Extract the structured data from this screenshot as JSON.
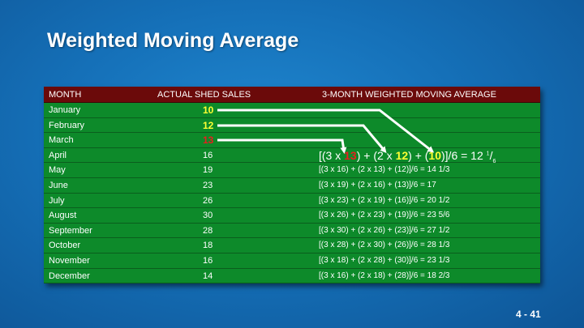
{
  "title": "Weighted Moving Average",
  "headers": {
    "month": "MONTH",
    "sales": "ACTUAL SHED SALES",
    "wma": "3-MONTH WEIGHTED MOVING AVERAGE"
  },
  "rows": [
    {
      "month": "January",
      "sales": "10",
      "wma": ""
    },
    {
      "month": "February",
      "sales": "12",
      "wma": ""
    },
    {
      "month": "March",
      "sales": "13",
      "wma": ""
    },
    {
      "month": "April",
      "sales": "16",
      "wma": ""
    },
    {
      "month": "May",
      "sales": "19",
      "wma": "[(3 x 16) + (2 x 13) + (12)]/6 = 14 1/3"
    },
    {
      "month": "June",
      "sales": "23",
      "wma": "[(3 x 19) + (2 x 16) + (13)]/6 = 17"
    },
    {
      "month": "July",
      "sales": "26",
      "wma": "[(3 x 23) + (2 x 19) + (16)]/6 = 20 1/2"
    },
    {
      "month": "August",
      "sales": "30",
      "wma": "[(3 x 26) + (2 x 23) + (19)]/6 = 23 5/6"
    },
    {
      "month": "September",
      "sales": "28",
      "wma": "[(3 x 30) + (2 x 26) + (23)]/6 = 27 1/2"
    },
    {
      "month": "October",
      "sales": "18",
      "wma": "[(3 x 28) + (2 x 30) + (26)]/6 = 28 1/3"
    },
    {
      "month": "November",
      "sales": "16",
      "wma": "[(3 x 18) + (2 x 28) + (30)]/6 = 23 1/3"
    },
    {
      "month": "December",
      "sales": "14",
      "wma": "[(3 x 16) + (2 x 18) + (28)]/6 = 18 2/3"
    }
  ],
  "april_formula": {
    "p1": "[(3 x ",
    "v1": "13",
    "p2": ") + (2 x ",
    "v2": "12",
    "p3": ") + (",
    "v3": "10",
    "p4": ")]/6 = 12 ",
    "frac_num": "1",
    "frac_den": "6"
  },
  "page_number": "4 - 41",
  "colors": {
    "background": "#1570b8",
    "header": "#6b0a0a",
    "row": "#0d8a2a",
    "highlight_yellow": "#ffff33",
    "highlight_red": "#e81e1e"
  }
}
